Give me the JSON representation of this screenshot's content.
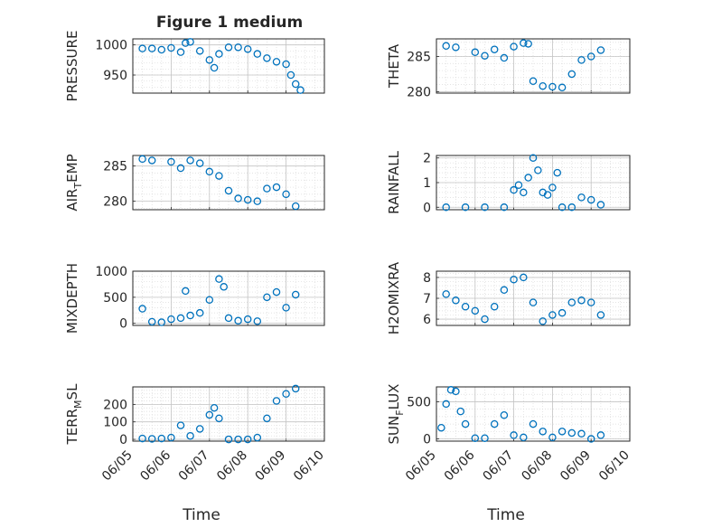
{
  "figure_title": "Figure 1 medium",
  "marker_color": "#0072BD",
  "marker": "open-circle",
  "chart_data": [
    {
      "type": "scatter",
      "title": "",
      "ylabel": "PRESSURE",
      "ylabel_sub": "",
      "xlabel": "",
      "xlim": [
        "06/05",
        "06/10"
      ],
      "ylim": [
        920,
        1010
      ],
      "yticks": [
        950,
        1000
      ],
      "xticks": [],
      "grid": true,
      "x": [
        "06/05 06:00",
        "06/05 12:00",
        "06/05 18:00",
        "06/06 00:00",
        "06/06 06:00",
        "06/06 09:00",
        "06/06 12:00",
        "06/06 18:00",
        "06/07 00:00",
        "06/07 03:00",
        "06/07 06:00",
        "06/07 12:00",
        "06/07 18:00",
        "06/08 00:00",
        "06/08 06:00",
        "06/08 12:00",
        "06/08 18:00",
        "06/09 00:00",
        "06/09 03:00",
        "06/09 06:00",
        "06/09 09:00"
      ],
      "y": [
        994,
        994,
        992,
        995,
        988,
        1003,
        1005,
        990,
        975,
        962,
        985,
        996,
        996,
        993,
        985,
        978,
        972,
        968,
        950,
        935,
        925
      ]
    },
    {
      "type": "scatter",
      "title": "",
      "ylabel": "THETA",
      "ylabel_sub": "",
      "xlabel": "",
      "xlim": [
        "06/05",
        "06/10"
      ],
      "ylim": [
        279.8,
        287.5
      ],
      "yticks": [
        280,
        285
      ],
      "xticks": [],
      "grid": true,
      "x": [
        "06/05 06:00",
        "06/05 12:00",
        "06/06 00:00",
        "06/06 06:00",
        "06/06 12:00",
        "06/06 18:00",
        "06/07 00:00",
        "06/07 06:00",
        "06/07 09:00",
        "06/07 12:00",
        "06/07 18:00",
        "06/08 00:00",
        "06/08 06:00",
        "06/08 12:00",
        "06/08 18:00",
        "06/09 00:00",
        "06/09 06:00"
      ],
      "y": [
        286.5,
        286.3,
        285.6,
        285.1,
        286.0,
        284.8,
        286.4,
        286.9,
        286.8,
        281.5,
        280.8,
        280.7,
        280.6,
        282.5,
        284.5,
        285.0,
        285.9
      ]
    },
    {
      "type": "scatter",
      "title": "",
      "ylabel": "AIR",
      "ylabel_sub": "T",
      "ylabel_post": "EMP",
      "xlabel": "",
      "xlim": [
        "06/05",
        "06/10"
      ],
      "ylim": [
        278.8,
        286.5
      ],
      "yticks": [
        280,
        285
      ],
      "xticks": [],
      "grid": true,
      "x": [
        "06/05 06:00",
        "06/05 12:00",
        "06/06 00:00",
        "06/06 06:00",
        "06/06 12:00",
        "06/06 18:00",
        "06/07 00:00",
        "06/07 06:00",
        "06/07 12:00",
        "06/07 18:00",
        "06/08 00:00",
        "06/08 06:00",
        "06/08 12:00",
        "06/08 18:00",
        "06/09 00:00",
        "06/09 06:00"
      ],
      "y": [
        286.0,
        285.8,
        285.6,
        284.7,
        285.8,
        285.4,
        284.2,
        283.6,
        281.5,
        280.4,
        280.2,
        280.0,
        281.8,
        282.0,
        281.0,
        279.3
      ]
    },
    {
      "type": "scatter",
      "title": "",
      "ylabel": "RAINFALL",
      "ylabel_sub": "",
      "xlabel": "",
      "xlim": [
        "06/05",
        "06/10"
      ],
      "ylim": [
        -0.1,
        2.1
      ],
      "yticks": [
        0,
        1,
        2
      ],
      "xticks": [],
      "grid": true,
      "x": [
        "06/05 06:00",
        "06/05 18:00",
        "06/06 06:00",
        "06/06 18:00",
        "06/07 00:00",
        "06/07 03:00",
        "06/07 06:00",
        "06/07 09:00",
        "06/07 12:00",
        "06/07 15:00",
        "06/07 18:00",
        "06/07 21:00",
        "06/08 00:00",
        "06/08 03:00",
        "06/08 06:00",
        "06/08 12:00",
        "06/08 18:00",
        "06/09 00:00",
        "06/09 06:00"
      ],
      "y": [
        0,
        0,
        0,
        0,
        0.7,
        0.9,
        0.6,
        1.2,
        2.0,
        1.5,
        0.6,
        0.5,
        0.8,
        1.4,
        0,
        0,
        0.4,
        0.3,
        0.1
      ]
    },
    {
      "type": "scatter",
      "title": "",
      "ylabel": "MIXDEPTH",
      "ylabel_sub": "",
      "xlabel": "",
      "xlim": [
        "06/05",
        "06/10"
      ],
      "ylim": [
        -40,
        1000
      ],
      "yticks": [
        0,
        500,
        1000
      ],
      "xticks": [],
      "grid": true,
      "x": [
        "06/05 06:00",
        "06/05 12:00",
        "06/05 18:00",
        "06/06 00:00",
        "06/06 06:00",
        "06/06 09:00",
        "06/06 12:00",
        "06/06 18:00",
        "06/07 00:00",
        "06/07 06:00",
        "06/07 09:00",
        "06/07 12:00",
        "06/07 18:00",
        "06/08 00:00",
        "06/08 06:00",
        "06/08 12:00",
        "06/08 18:00",
        "06/09 00:00",
        "06/09 06:00"
      ],
      "y": [
        280,
        30,
        20,
        80,
        100,
        620,
        150,
        200,
        450,
        850,
        700,
        100,
        50,
        80,
        40,
        500,
        600,
        300,
        550
      ]
    },
    {
      "type": "scatter",
      "title": "",
      "ylabel": "H2OMIXRA",
      "ylabel_sub": "",
      "xlabel": "",
      "xlim": [
        "06/05",
        "06/10"
      ],
      "ylim": [
        5.7,
        8.3
      ],
      "yticks": [
        6,
        7,
        8
      ],
      "xticks": [],
      "grid": true,
      "x": [
        "06/05 06:00",
        "06/05 12:00",
        "06/05 18:00",
        "06/06 00:00",
        "06/06 06:00",
        "06/06 12:00",
        "06/06 18:00",
        "06/07 00:00",
        "06/07 06:00",
        "06/07 12:00",
        "06/07 18:00",
        "06/08 00:00",
        "06/08 06:00",
        "06/08 12:00",
        "06/08 18:00",
        "06/09 00:00",
        "06/09 06:00"
      ],
      "y": [
        7.2,
        6.9,
        6.6,
        6.4,
        6.0,
        6.6,
        7.4,
        7.9,
        8.0,
        6.8,
        5.9,
        6.2,
        6.3,
        6.8,
        6.9,
        6.8,
        6.2
      ]
    },
    {
      "type": "scatter",
      "title": "",
      "ylabel": "TERR",
      "ylabel_sub": "M",
      "ylabel_post": "SL",
      "xlabel": "Time",
      "xlim": [
        "06/05",
        "06/10"
      ],
      "ylim": [
        -10,
        300
      ],
      "yticks": [
        0,
        100,
        200
      ],
      "xticks": [
        "06/05",
        "06/06",
        "06/07",
        "06/08",
        "06/09",
        "06/10"
      ],
      "grid": true,
      "x": [
        "06/05 06:00",
        "06/05 12:00",
        "06/05 18:00",
        "06/06 00:00",
        "06/06 06:00",
        "06/06 12:00",
        "06/06 18:00",
        "06/07 00:00",
        "06/07 03:00",
        "06/07 06:00",
        "06/07 12:00",
        "06/07 18:00",
        "06/08 00:00",
        "06/08 06:00",
        "06/08 12:00",
        "06/08 18:00",
        "06/09 00:00",
        "06/09 06:00"
      ],
      "y": [
        5,
        3,
        5,
        10,
        80,
        20,
        60,
        140,
        180,
        120,
        0,
        0,
        0,
        10,
        120,
        220,
        260,
        290
      ]
    },
    {
      "type": "scatter",
      "title": "",
      "ylabel": "SUN",
      "ylabel_sub": "F",
      "ylabel_post": "LUX",
      "xlabel": "Time",
      "xlim": [
        "06/05",
        "06/10"
      ],
      "ylim": [
        -30,
        700
      ],
      "yticks": [
        0,
        500
      ],
      "xticks": [
        "06/05",
        "06/06",
        "06/07",
        "06/08",
        "06/09",
        "06/10"
      ],
      "grid": true,
      "x": [
        "06/05 03:00",
        "06/05 06:00",
        "06/05 09:00",
        "06/05 12:00",
        "06/05 15:00",
        "06/05 18:00",
        "06/06 00:00",
        "06/06 06:00",
        "06/06 12:00",
        "06/06 18:00",
        "06/07 00:00",
        "06/07 06:00",
        "06/07 12:00",
        "06/07 18:00",
        "06/08 00:00",
        "06/08 06:00",
        "06/08 12:00",
        "06/08 18:00",
        "06/09 00:00",
        "06/09 06:00"
      ],
      "y": [
        150,
        470,
        660,
        640,
        370,
        200,
        10,
        10,
        200,
        320,
        50,
        20,
        200,
        100,
        20,
        100,
        80,
        70,
        0,
        50
      ]
    }
  ]
}
